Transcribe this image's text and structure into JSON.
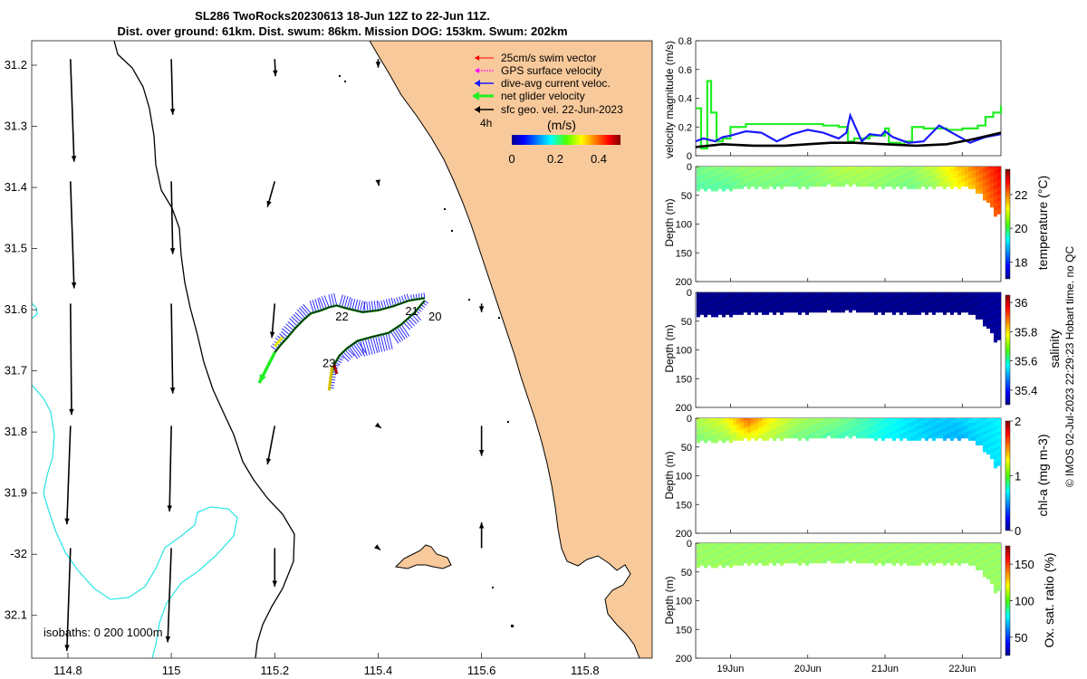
{
  "title": {
    "line1": "SL286 TwoRocks20230613 18-Jun 12Z to 22-Jun 11Z.",
    "line2": "Dist. over ground: 61km. Dist. swum: 86km. Mission DOG: 153km. Swum: 202km"
  },
  "credit": "© IMOS 02-Jul-2023 22:29:23 Hobart time. no QC",
  "colors": {
    "land": "#f8c99b",
    "isobath_200": "#000000",
    "isobath_1000": "#33e6e6",
    "track": "#1a8a1a",
    "dive_avg": "#1a1aff",
    "net_glider": "#22ee22",
    "sfc_geo": "#000000",
    "swim": "#ff0000",
    "gps": "#ff00ff"
  },
  "chart_data": [
    {
      "type": "map",
      "xlim": [
        114.73,
        115.93
      ],
      "ylim": [
        -32.17,
        -31.16
      ],
      "xticks": [
        114.8,
        115,
        115.2,
        115.4,
        115.6,
        115.8
      ],
      "xtick_labels": [
        "114.8",
        "115",
        "115.2",
        "115.4",
        "115.6",
        "115.8"
      ],
      "yticks": [
        -31.2,
        -31.3,
        -31.4,
        -31.5,
        -31.6,
        -31.7,
        -31.8,
        -31.9,
        -32,
        -32.1
      ],
      "ytick_labels": [
        "31.2",
        "31.3",
        "31.4",
        "31.5",
        "31.6",
        "31.7",
        "31.8",
        "31.9",
        "-32",
        "32.1"
      ],
      "legend": [
        {
          "label": "25cm/s swim vector",
          "color": "#ff0000",
          "style": "thin-arrow"
        },
        {
          "label": "GPS surface velocity",
          "color": "#ff00ff",
          "style": "thin-arrow"
        },
        {
          "label": "dive-avg current veloc.",
          "color": "#1a1aff",
          "style": "arrow"
        },
        {
          "label": "net glider velocity",
          "color": "#22ee22",
          "style": "thick-arrow"
        },
        {
          "label": "sfc geo. vel. 22-Jun-2023",
          "color": "#000000",
          "style": "arrow"
        }
      ],
      "legend_extra": "4h",
      "colorbar": {
        "label": "(m/s)",
        "min": 0,
        "max": 0.5,
        "ticks": [
          0,
          0.2,
          0.4
        ],
        "tick_labels": [
          "0",
          "0.2",
          "0.4"
        ]
      },
      "isobath_note": "isobaths: 0   200  1000m",
      "day_labels": [
        {
          "text": "20",
          "lon": 115.51,
          "lat": -31.612
        },
        {
          "text": "21",
          "lon": 115.465,
          "lat": -31.603
        },
        {
          "text": "22",
          "lon": 115.33,
          "lat": -31.612
        },
        {
          "text": "23",
          "lon": 115.305,
          "lat": -31.688
        }
      ],
      "glider_track": [
        [
          115.49,
          -31.581
        ],
        [
          115.46,
          -31.585
        ],
        [
          115.43,
          -31.594
        ],
        [
          115.4,
          -31.601
        ],
        [
          115.37,
          -31.604
        ],
        [
          115.34,
          -31.598
        ],
        [
          115.32,
          -31.593
        ],
        [
          115.305,
          -31.596
        ],
        [
          115.29,
          -31.601
        ],
        [
          115.27,
          -31.606
        ],
        [
          115.255,
          -31.617
        ],
        [
          115.24,
          -31.63
        ],
        [
          115.225,
          -31.645
        ],
        [
          115.21,
          -31.659
        ],
        [
          115.2,
          -31.67
        ]
      ],
      "glider_track_return": [
        [
          115.49,
          -31.585
        ],
        [
          115.47,
          -31.605
        ],
        [
          115.445,
          -31.624
        ],
        [
          115.42,
          -31.638
        ],
        [
          115.39,
          -31.644
        ],
        [
          115.36,
          -31.651
        ],
        [
          115.34,
          -31.663
        ],
        [
          115.325,
          -31.675
        ],
        [
          115.315,
          -31.69
        ],
        [
          115.31,
          -31.705
        ],
        [
          115.305,
          -31.732
        ]
      ],
      "current_vectors": [
        {
          "lon": 114.805,
          "lat": -31.19,
          "u": 0.01,
          "v": -0.24
        },
        {
          "lon": 115.0,
          "lat": -31.19,
          "u": 0.004,
          "v": -0.13
        },
        {
          "lon": 115.2,
          "lat": -31.19,
          "u": 0.002,
          "v": -0.04
        },
        {
          "lon": 115.4,
          "lat": -31.19,
          "u": 0.0,
          "v": -0.02
        },
        {
          "lon": 114.805,
          "lat": -31.39,
          "u": 0.01,
          "v": -0.25
        },
        {
          "lon": 115.0,
          "lat": -31.39,
          "u": 0.004,
          "v": -0.17
        },
        {
          "lon": 115.2,
          "lat": -31.39,
          "u": -0.02,
          "v": -0.06
        },
        {
          "lon": 115.4,
          "lat": -31.39,
          "u": 0.002,
          "v": -0.01
        },
        {
          "lon": 114.805,
          "lat": -31.59,
          "u": 0.003,
          "v": -0.26
        },
        {
          "lon": 115.0,
          "lat": -31.59,
          "u": 0.004,
          "v": -0.21
        },
        {
          "lon": 115.2,
          "lat": -31.59,
          "u": -0.008,
          "v": -0.08
        },
        {
          "lon": 115.6,
          "lat": -31.59,
          "u": 0.0,
          "v": -0.02
        },
        {
          "lon": 114.805,
          "lat": -31.79,
          "u": -0.01,
          "v": -0.23
        },
        {
          "lon": 115.0,
          "lat": -31.79,
          "u": -0.005,
          "v": -0.2
        },
        {
          "lon": 115.2,
          "lat": -31.79,
          "u": -0.02,
          "v": -0.09
        },
        {
          "lon": 115.4,
          "lat": -31.79,
          "u": 0.008,
          "v": -0.005
        },
        {
          "lon": 115.6,
          "lat": -31.79,
          "u": 0.0,
          "v": -0.07
        },
        {
          "lon": 114.805,
          "lat": -31.99,
          "u": -0.01,
          "v": -0.24
        },
        {
          "lon": 115.0,
          "lat": -31.99,
          "u": -0.01,
          "v": -0.22
        },
        {
          "lon": 115.2,
          "lat": -31.99,
          "u": 0.0,
          "v": -0.09
        },
        {
          "lon": 115.4,
          "lat": -31.99,
          "u": 0.006,
          "v": -0.004
        },
        {
          "lon": 115.6,
          "lat": -31.99,
          "u": 0.0,
          "v": 0.06
        }
      ]
    },
    {
      "type": "line",
      "ylabel": "velocity magnitude (m/s)",
      "xlim": [
        18.55,
        22.5
      ],
      "ylim": [
        0,
        0.8
      ],
      "yticks": [
        0,
        0.2,
        0.4,
        0.6,
        0.8
      ],
      "ytick_labels": [
        "0",
        "0.2",
        "0.4",
        "0.6",
        "0.8"
      ],
      "series": [
        {
          "name": "net glider velocity",
          "color": "#22ee22",
          "step": true,
          "x": [
            18.55,
            18.62,
            18.7,
            18.75,
            18.82,
            18.9,
            19.0,
            19.2,
            19.5,
            19.8,
            20.0,
            20.2,
            20.4,
            20.5,
            20.52,
            20.6,
            20.8,
            21.0,
            21.05,
            21.2,
            21.25,
            21.35,
            21.5,
            21.8,
            22.0,
            22.2,
            22.3,
            22.4,
            22.5
          ],
          "y": [
            0.33,
            0.05,
            0.52,
            0.3,
            0.1,
            0.12,
            0.2,
            0.22,
            0.22,
            0.22,
            0.22,
            0.21,
            0.2,
            0.2,
            0.1,
            0.12,
            0.14,
            0.19,
            0.09,
            0.08,
            0.1,
            0.2,
            0.19,
            0.18,
            0.19,
            0.21,
            0.27,
            0.3,
            0.35
          ]
        },
        {
          "name": "dive-avg current veloc.",
          "color": "#1a1aff",
          "x": [
            18.55,
            18.65,
            18.8,
            18.9,
            19.0,
            19.2,
            19.4,
            19.6,
            19.8,
            20.0,
            20.2,
            20.4,
            20.5,
            20.55,
            20.7,
            20.8,
            20.95,
            21.0,
            21.1,
            21.3,
            21.5,
            21.7,
            21.9,
            22.1,
            22.3,
            22.5
          ],
          "y": [
            0.1,
            0.12,
            0.1,
            0.13,
            0.14,
            0.17,
            0.16,
            0.1,
            0.15,
            0.18,
            0.16,
            0.12,
            0.16,
            0.28,
            0.1,
            0.15,
            0.14,
            0.17,
            0.13,
            0.09,
            0.1,
            0.21,
            0.15,
            0.09,
            0.13,
            0.15
          ]
        },
        {
          "name": "sfc geo. vel.",
          "color": "#000000",
          "x": [
            18.55,
            18.9,
            19.3,
            19.7,
            20.0,
            20.3,
            20.6,
            21.0,
            21.4,
            21.8,
            22.1,
            22.5
          ],
          "y": [
            0.06,
            0.08,
            0.07,
            0.07,
            0.08,
            0.09,
            0.09,
            0.08,
            0.07,
            0.08,
            0.11,
            0.16
          ]
        }
      ]
    },
    {
      "type": "heatmap",
      "ylabel": "Depth (m)",
      "clabel": "temperature (°C)",
      "ylim": [
        0,
        200
      ],
      "yticks": [
        0,
        50,
        100,
        150,
        200
      ],
      "ytick_labels": [
        "0",
        "50",
        "100",
        "150",
        "200"
      ],
      "clim": [
        17,
        23.5
      ],
      "cticks": [
        18,
        20,
        22
      ],
      "ctick_labels": [
        "18",
        "20",
        "22"
      ],
      "x": [
        18.55,
        18.9,
        19.2,
        19.5,
        19.8,
        20.1,
        20.4,
        20.7,
        21.0,
        21.3,
        21.6,
        21.9,
        22.1,
        22.3,
        22.5
      ],
      "max_depth": [
        40,
        38,
        35,
        34,
        33,
        32,
        31,
        32,
        34,
        35,
        34,
        33,
        34,
        60,
        100
      ],
      "surface_value": [
        20.2,
        20.3,
        20.4,
        20.4,
        20.3,
        20.4,
        20.6,
        20.6,
        20.5,
        20.4,
        20.7,
        21.3,
        21.8,
        22.3,
        22.8
      ],
      "deep_value": [
        20.0,
        20.0,
        20.2,
        20.2,
        20.2,
        20.3,
        20.4,
        20.4,
        20.3,
        20.2,
        20.4,
        21.0,
        21.4,
        21.9,
        22.3
      ]
    },
    {
      "type": "heatmap",
      "ylabel": "Depth (m)",
      "clabel": "salinity",
      "ylim": [
        0,
        200
      ],
      "yticks": [
        0,
        50,
        100,
        150,
        200
      ],
      "ytick_labels": [
        "0",
        "50",
        "100",
        "150",
        "200"
      ],
      "clim": [
        35.3,
        36.05
      ],
      "cticks": [
        35.4,
        35.6,
        35.8,
        36
      ],
      "ctick_labels": [
        "35.4",
        "35.6",
        "35.8",
        "36"
      ],
      "x": [
        18.55,
        18.9,
        19.2,
        19.5,
        19.8,
        20.1,
        20.4,
        20.7,
        21.0,
        21.3,
        21.6,
        21.9,
        22.1,
        22.3,
        22.5
      ],
      "max_depth": [
        40,
        38,
        35,
        34,
        33,
        32,
        31,
        32,
        34,
        35,
        34,
        33,
        34,
        60,
        100
      ],
      "surface_value": [
        35.31,
        35.31,
        35.31,
        35.31,
        35.31,
        35.31,
        35.31,
        35.31,
        35.31,
        35.31,
        35.31,
        35.31,
        35.31,
        35.32,
        35.32
      ],
      "deep_value": [
        35.31,
        35.31,
        35.31,
        35.31,
        35.31,
        35.31,
        35.31,
        35.31,
        35.31,
        35.31,
        35.31,
        35.31,
        35.31,
        35.32,
        35.32
      ]
    },
    {
      "type": "heatmap",
      "ylabel": "Depth (m)",
      "clabel": "chl-a (mg m-3)",
      "ylim": [
        0,
        200
      ],
      "yticks": [
        0,
        50,
        100,
        150,
        200
      ],
      "ytick_labels": [
        "0",
        "50",
        "100",
        "150",
        "200"
      ],
      "clim": [
        0,
        2
      ],
      "cticks": [
        0,
        1,
        2
      ],
      "ctick_labels": [
        "0",
        "1",
        "2"
      ],
      "x": [
        18.55,
        18.9,
        19.2,
        19.5,
        19.8,
        20.1,
        20.4,
        20.7,
        21.0,
        21.3,
        21.6,
        21.9,
        22.1,
        22.3,
        22.5
      ],
      "max_depth": [
        40,
        38,
        35,
        34,
        33,
        32,
        31,
        32,
        34,
        35,
        34,
        33,
        34,
        60,
        100
      ],
      "surface_value": [
        1.1,
        1.2,
        1.55,
        1.25,
        1.1,
        1.05,
        1.0,
        0.9,
        0.8,
        0.7,
        0.65,
        0.65,
        0.7,
        0.7,
        0.75
      ],
      "deep_value": [
        1.0,
        1.05,
        1.2,
        1.1,
        1.0,
        0.95,
        0.9,
        0.85,
        0.75,
        0.7,
        0.65,
        0.6,
        0.65,
        0.7,
        0.7
      ]
    },
    {
      "type": "heatmap",
      "ylabel": "Depth (m)",
      "clabel": "Ox. sat. ratio (%)",
      "ylim": [
        0,
        200
      ],
      "yticks": [
        0,
        50,
        100,
        150,
        200
      ],
      "ytick_labels": [
        "0",
        "50",
        "100",
        "150",
        "200"
      ],
      "xticks": [
        19,
        20,
        21,
        22
      ],
      "xtick_labels": [
        "19Jun",
        "20Jun",
        "21Jun",
        "22Jun"
      ],
      "clim": [
        25,
        175
      ],
      "cticks": [
        50,
        100,
        150
      ],
      "ctick_labels": [
        "50",
        "100",
        "150"
      ],
      "x": [
        18.55,
        18.9,
        19.2,
        19.5,
        19.8,
        20.1,
        20.4,
        20.7,
        21.0,
        21.3,
        21.6,
        21.9,
        22.1,
        22.3,
        22.5
      ],
      "max_depth": [
        40,
        38,
        35,
        34,
        33,
        32,
        31,
        32,
        34,
        35,
        34,
        33,
        34,
        60,
        100
      ],
      "surface_value": [
        104,
        104,
        104,
        104,
        104,
        104,
        104,
        104,
        104,
        104,
        104,
        104,
        104,
        104,
        104
      ],
      "deep_value": [
        104,
        104,
        104,
        104,
        104,
        104,
        104,
        104,
        104,
        104,
        104,
        104,
        104,
        104,
        104
      ]
    }
  ]
}
